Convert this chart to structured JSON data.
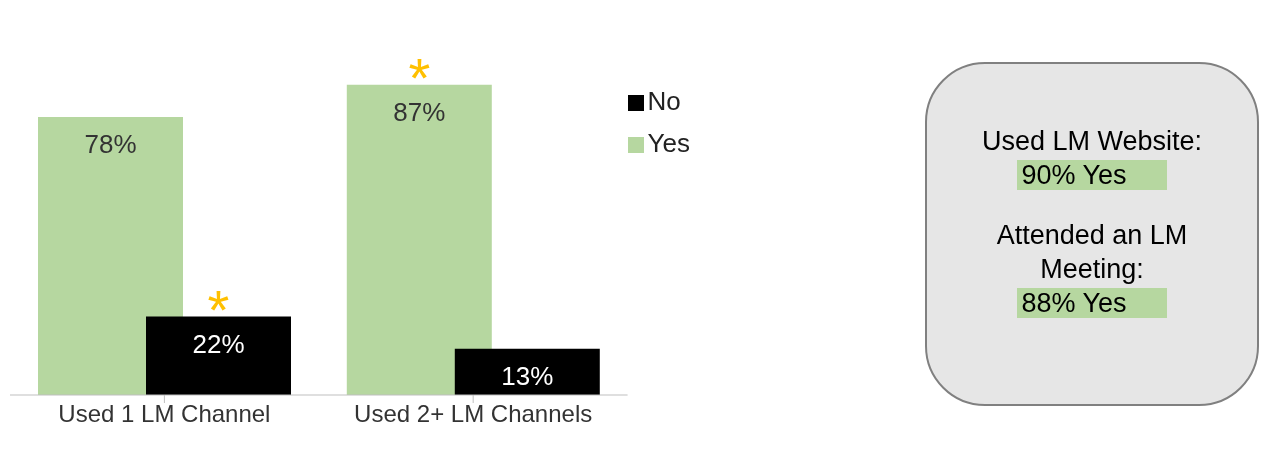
{
  "chart_data": [
    {
      "type": "bar",
      "categories": [
        "Used 1 LM Channel",
        "Used 2+ LM Channels"
      ],
      "series": [
        {
          "name": "Yes",
          "color": "#b6d7a0",
          "values": [
            78,
            87
          ],
          "value_labels": [
            "78%",
            "87%"
          ]
        },
        {
          "name": "No",
          "color": "#000000",
          "values": [
            22,
            13
          ],
          "value_labels": [
            "22%",
            "13%"
          ]
        }
      ],
      "legend": "right",
      "annotations": [
        {
          "text": "*",
          "x": "Used 1 LM Channel",
          "y": 22
        },
        {
          "text": "*",
          "x": "Used 2+ LM Channels",
          "y": 87
        }
      ]
    },
    {
      "type": "other",
      "annotations": [
        "Used LM Website:",
        "90% Yes",
        "Attended an LM Meeting:",
        "88% Yes"
      ]
    }
  ]
}
